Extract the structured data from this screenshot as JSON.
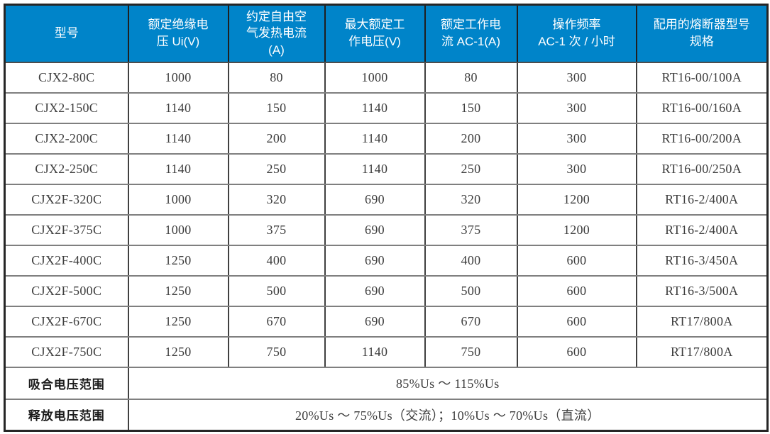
{
  "table": {
    "columns": [
      {
        "label": "型号"
      },
      {
        "label": "额定绝缘电\n压 Ui(V)"
      },
      {
        "label": "约定自由空\n气发热电流\n(A)"
      },
      {
        "label": "最大额定工\n作电压(V)"
      },
      {
        "label": "额定工作电\n流 AC-1(A)"
      },
      {
        "label": "操作频率\nAC-1 次 / 小时"
      },
      {
        "label": "配用的熔断器型号\n规格"
      }
    ],
    "rows": [
      [
        "CJX2-80C",
        "1000",
        "80",
        "1000",
        "80",
        "300",
        "RT16-00/100A"
      ],
      [
        "CJX2-150C",
        "1140",
        "150",
        "1140",
        "150",
        "300",
        "RT16-00/160A"
      ],
      [
        "CJX2-200C",
        "1140",
        "200",
        "1140",
        "200",
        "300",
        "RT16-00/200A"
      ],
      [
        "CJX2-250C",
        "1140",
        "250",
        "1140",
        "250",
        "300",
        "RT16-00/250A"
      ],
      [
        "CJX2F-320C",
        "1000",
        "320",
        "690",
        "320",
        "1200",
        "RT16-2/400A"
      ],
      [
        "CJX2F-375C",
        "1000",
        "375",
        "690",
        "375",
        "1200",
        "RT16-2/400A"
      ],
      [
        "CJX2F-400C",
        "1250",
        "400",
        "690",
        "400",
        "600",
        "RT16-3/450A"
      ],
      [
        "CJX2F-500C",
        "1250",
        "500",
        "690",
        "500",
        "600",
        "RT16-3/500A"
      ],
      [
        "CJX2F-670C",
        "1250",
        "670",
        "690",
        "670",
        "600",
        "RT17/800A"
      ],
      [
        "CJX2F-750C",
        "1250",
        "750",
        "1140",
        "750",
        "600",
        "RT17/800A"
      ]
    ],
    "footer_rows": [
      {
        "label": "吸合电压范围",
        "value": "85%Us ～ 115%Us"
      },
      {
        "label": "释放电压范围",
        "value": "20%Us ～ 75%Us（交流）；10%Us ～ 70%Us（直流）"
      }
    ]
  },
  "colors": {
    "header_bg": "#0084c9",
    "header_text": "#ffffff",
    "grid_horizontal": "#7f7f7f",
    "grid_vertical": "#404040",
    "outer_border": "#262626",
    "body_text": "#3d3d3d"
  }
}
